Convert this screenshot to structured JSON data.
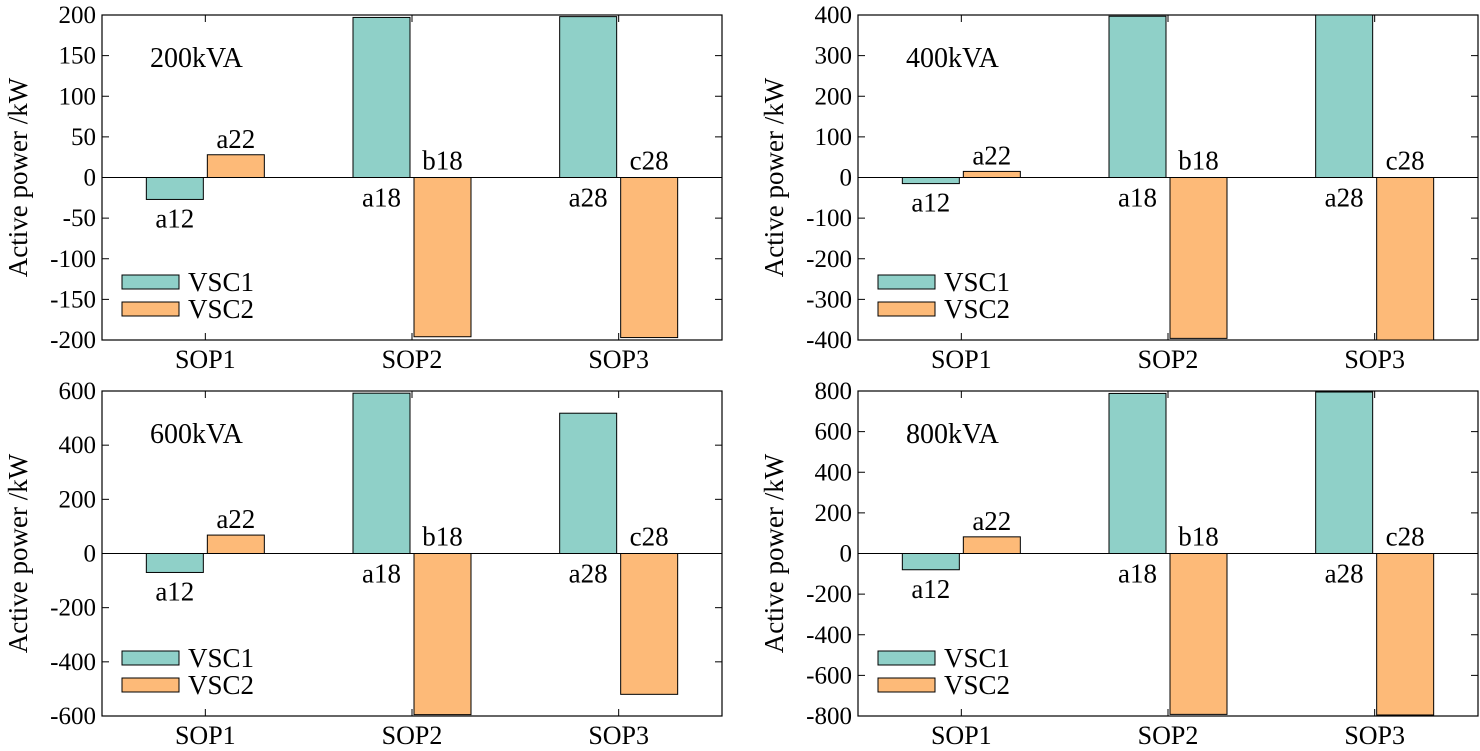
{
  "colors": {
    "VSC1": "#8fd0c8",
    "VSC2": "#fdba78",
    "axis": "#000000",
    "background": "#ffffff"
  },
  "chart_data": [
    {
      "type": "bar",
      "annotation": "200kVA",
      "ylabel": "Active power /kW",
      "xlabel": "",
      "ylim": [
        -200,
        200
      ],
      "yticks": [
        200,
        150,
        100,
        50,
        0,
        -50,
        -100,
        -150,
        -200
      ],
      "categories": [
        "SOP1",
        "SOP2",
        "SOP3"
      ],
      "legend": {
        "position": "bottom-left",
        "entries": [
          "VSC1",
          "VSC2"
        ]
      },
      "series": [
        {
          "name": "VSC1",
          "values": [
            -27,
            197,
            198
          ],
          "labels": [
            "a12",
            "a18",
            "a28"
          ]
        },
        {
          "name": "VSC2",
          "values": [
            28,
            -196,
            -197
          ],
          "labels": [
            "a22",
            "b18",
            "c28"
          ]
        }
      ]
    },
    {
      "type": "bar",
      "annotation": "400kVA",
      "ylabel": "Active power /kW",
      "xlabel": "",
      "ylim": [
        -400,
        400
      ],
      "yticks": [
        400,
        300,
        200,
        100,
        0,
        -100,
        -200,
        -300,
        -400
      ],
      "categories": [
        "SOP1",
        "SOP2",
        "SOP3"
      ],
      "legend": {
        "position": "bottom-left",
        "entries": [
          "VSC1",
          "VSC2"
        ]
      },
      "series": [
        {
          "name": "VSC1",
          "values": [
            -15,
            397,
            400
          ],
          "labels": [
            "a12",
            "a18",
            "a28"
          ]
        },
        {
          "name": "VSC2",
          "values": [
            15,
            -396,
            -400
          ],
          "labels": [
            "a22",
            "b18",
            "c28"
          ]
        }
      ]
    },
    {
      "type": "bar",
      "annotation": "600kVA",
      "ylabel": "Active power /kW",
      "xlabel": "",
      "ylim": [
        -600,
        600
      ],
      "yticks": [
        600,
        400,
        200,
        0,
        -200,
        -400,
        -600
      ],
      "categories": [
        "SOP1",
        "SOP2",
        "SOP3"
      ],
      "legend": {
        "position": "bottom-left",
        "entries": [
          "VSC1",
          "VSC2"
        ]
      },
      "series": [
        {
          "name": "VSC1",
          "values": [
            -70,
            592,
            518
          ],
          "labels": [
            "a12",
            "a18",
            "a28"
          ]
        },
        {
          "name": "VSC2",
          "values": [
            68,
            -595,
            -520
          ],
          "labels": [
            "a22",
            "b18",
            "c28"
          ]
        }
      ]
    },
    {
      "type": "bar",
      "annotation": "800kVA",
      "ylabel": "Active power /kW",
      "xlabel": "",
      "ylim": [
        -800,
        800
      ],
      "yticks": [
        800,
        600,
        400,
        200,
        0,
        -200,
        -400,
        -600,
        -800
      ],
      "categories": [
        "SOP1",
        "SOP2",
        "SOP3"
      ],
      "legend": {
        "position": "bottom-left",
        "entries": [
          "VSC1",
          "VSC2"
        ]
      },
      "series": [
        {
          "name": "VSC1",
          "values": [
            -80,
            788,
            795
          ],
          "labels": [
            "a12",
            "a18",
            "a28"
          ]
        },
        {
          "name": "VSC2",
          "values": [
            82,
            -792,
            -795
          ],
          "labels": [
            "a22",
            "b18",
            "c28"
          ]
        }
      ]
    }
  ]
}
